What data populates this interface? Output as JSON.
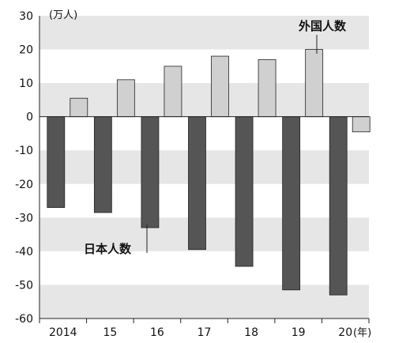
{
  "chart_data": {
    "type": "bar",
    "categories": [
      "2014",
      "15",
      "16",
      "17",
      "18",
      "19",
      "20"
    ],
    "series": [
      {
        "name": "日本人数",
        "values": [
          -27,
          -28.5,
          -33,
          -39.5,
          -44.5,
          -51.5,
          -53
        ],
        "color": "#555555"
      },
      {
        "name": "外国人数",
        "values": [
          5.5,
          11,
          15,
          18,
          17,
          20,
          -4.5
        ],
        "color": "#d0d0d0"
      }
    ],
    "ylim": [
      -60,
      30
    ],
    "yticks": [
      30,
      20,
      10,
      0,
      -10,
      -20,
      -30,
      -40,
      -50,
      -60
    ],
    "y_unit": "(万人)",
    "x_unit": "(年)",
    "grid": "alternating horizontal bands",
    "colors": {
      "band": "#e6e6e6",
      "background": "#ffffff"
    }
  }
}
